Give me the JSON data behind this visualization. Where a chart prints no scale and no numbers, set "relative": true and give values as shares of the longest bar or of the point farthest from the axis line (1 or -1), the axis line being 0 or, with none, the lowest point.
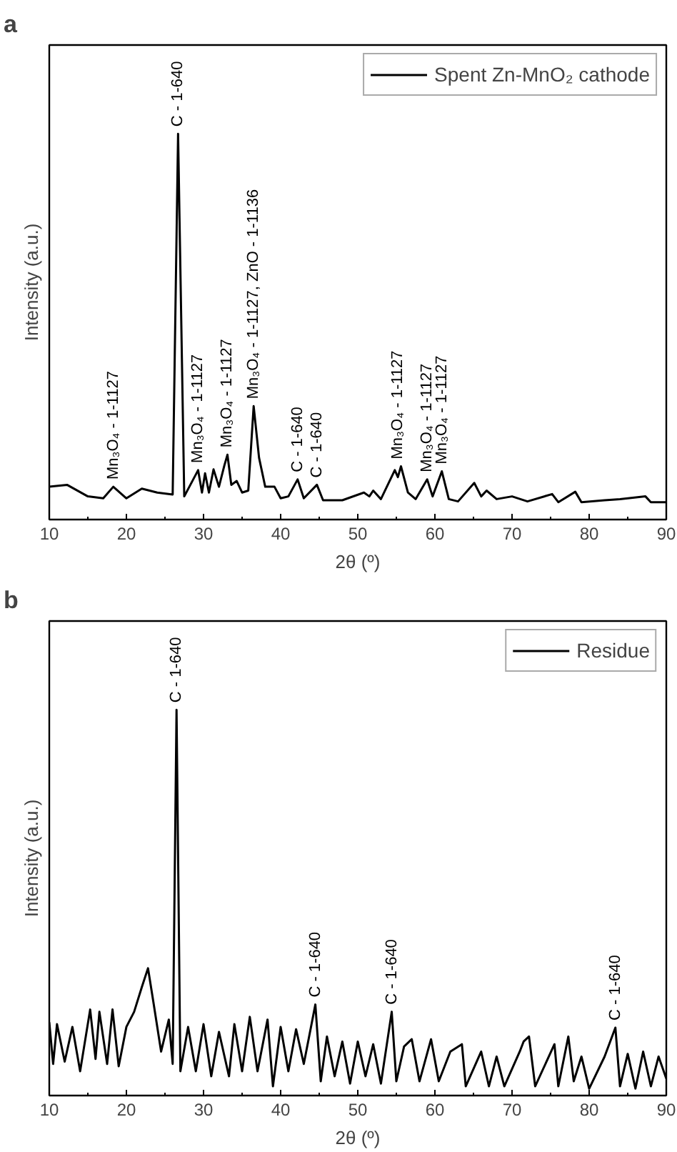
{
  "chart_data": [
    {
      "type": "line",
      "title": "a",
      "xlabel": "2θ (º)",
      "ylabel": "Intensity (a.u.)",
      "relative": true,
      "xlim": [
        10,
        90
      ],
      "xticks": [
        10,
        20,
        30,
        40,
        50,
        60,
        70,
        80,
        90
      ],
      "grid": false,
      "legend": "top right",
      "marker": "none",
      "line_style": "solid",
      "series": [
        {
          "name": "Spent Zn-MnO₂ cathode",
          "color": "#000000",
          "x": [
            10,
            12.3,
            15,
            17,
            18.3,
            20,
            22,
            24,
            26,
            26.7,
            27.5,
            29.3,
            29.8,
            30.2,
            30.7,
            31.3,
            32,
            32.7,
            33.1,
            33.6,
            34.3,
            35,
            35.8,
            36.5,
            37.2,
            38,
            39.2,
            40,
            41,
            42.2,
            43,
            44.7,
            45.5,
            48,
            50.8,
            51.5,
            52,
            53,
            54.8,
            55.2,
            55.6,
            56.5,
            57.5,
            59,
            59.7,
            60.9,
            61.8,
            63,
            65.1,
            66,
            66.7,
            68,
            70,
            72,
            75.2,
            76,
            78.2,
            79,
            82,
            84,
            87.3,
            88,
            90
          ],
          "values": [
            0.085,
            0.09,
            0.06,
            0.055,
            0.085,
            0.055,
            0.08,
            0.07,
            0.065,
            1.0,
            0.06,
            0.128,
            0.07,
            0.12,
            0.07,
            0.13,
            0.085,
            0.14,
            0.168,
            0.09,
            0.1,
            0.07,
            0.075,
            0.294,
            0.16,
            0.085,
            0.085,
            0.055,
            0.06,
            0.104,
            0.055,
            0.09,
            0.05,
            0.05,
            0.07,
            0.06,
            0.075,
            0.053,
            0.128,
            0.11,
            0.138,
            0.07,
            0.053,
            0.104,
            0.06,
            0.125,
            0.053,
            0.047,
            0.095,
            0.06,
            0.075,
            0.053,
            0.06,
            0.047,
            0.066,
            0.045,
            0.072,
            0.045,
            0.05,
            0.053,
            0.06,
            0.045,
            0.045
          ]
        }
      ],
      "annotations": [
        {
          "text": "Mn₃O₄ - 1-1127",
          "x": 18.3,
          "y": 0.085
        },
        {
          "text": "C - 1-640",
          "x": 26.7,
          "y": 1.0
        },
        {
          "text": "Mn₃O₄ - 1-1127",
          "x": 29.3,
          "y": 0.128
        },
        {
          "text": "Mn₃O₄ - 1-1127",
          "x": 33.1,
          "y": 0.168
        },
        {
          "text": "Mn₃O₄ - 1-1127, ZnO - 1-1136",
          "x": 36.5,
          "y": 0.294
        },
        {
          "text": "C - 1-640",
          "x": 42.2,
          "y": 0.104
        },
        {
          "text": "C - 1-640",
          "x": 44.7,
          "y": 0.09
        },
        {
          "text": "Mn₃O₄ - 1-1127",
          "x": 55.2,
          "y": 0.138
        },
        {
          "text": "Mn₃O₄ - 1-1127",
          "x": 59,
          "y": 0.104
        },
        {
          "text": "Mn₃O₄ - 1-1127",
          "x": 60.9,
          "y": 0.125
        }
      ]
    },
    {
      "type": "line",
      "title": "b",
      "xlabel": "2θ (º)",
      "ylabel": "Intensity (a.u.)",
      "relative": true,
      "xlim": [
        10,
        90
      ],
      "xticks": [
        10,
        20,
        30,
        40,
        50,
        60,
        70,
        80,
        90
      ],
      "grid": false,
      "legend": "top right",
      "marker": "none",
      "line_style": "solid",
      "series": [
        {
          "name": "Residue",
          "color": "#000000",
          "x": [
            10,
            10.5,
            11,
            12,
            13,
            14,
            15.3,
            16,
            16.5,
            17.5,
            18.2,
            19,
            20,
            21,
            22,
            22.8,
            23.5,
            24.5,
            25.5,
            26,
            26.5,
            27,
            28,
            29,
            30,
            31,
            32,
            33.3,
            34,
            35,
            36,
            37,
            38.3,
            39,
            40,
            41,
            42,
            43,
            44.5,
            45.2,
            46,
            47,
            48,
            49,
            50,
            51,
            52,
            53,
            54.4,
            55,
            56,
            57,
            58,
            59.5,
            60.5,
            62,
            63.5,
            64,
            66,
            67,
            68,
            69,
            71,
            71.5,
            72.2,
            73,
            75.5,
            76,
            77.3,
            78,
            79,
            80,
            82,
            83.4,
            84,
            85,
            86,
            87,
            88,
            89,
            90
          ],
          "values": [
            0.19,
            0.082,
            0.185,
            0.088,
            0.178,
            0.063,
            0.223,
            0.095,
            0.217,
            0.082,
            0.223,
            0.076,
            0.178,
            0.217,
            0.281,
            0.33,
            0.242,
            0.114,
            0.197,
            0.082,
            1.0,
            0.063,
            0.178,
            0.063,
            0.185,
            0.05,
            0.165,
            0.05,
            0.185,
            0.063,
            0.204,
            0.063,
            0.197,
            0.024,
            0.178,
            0.063,
            0.172,
            0.082,
            0.236,
            0.037,
            0.153,
            0.05,
            0.14,
            0.031,
            0.14,
            0.05,
            0.133,
            0.031,
            0.217,
            0.037,
            0.127,
            0.146,
            0.037,
            0.146,
            0.037,
            0.114,
            0.133,
            0.024,
            0.114,
            0.024,
            0.101,
            0.024,
            0.114,
            0.14,
            0.153,
            0.024,
            0.133,
            0.024,
            0.153,
            0.037,
            0.101,
            0.018,
            0.101,
            0.176,
            0.024,
            0.108,
            0.018,
            0.114,
            0.024,
            0.101,
            0.044
          ]
        }
      ],
      "annotations": [
        {
          "text": "C - 1-640",
          "x": 26.5,
          "y": 1.0
        },
        {
          "text": "C - 1-640",
          "x": 44.5,
          "y": 0.236
        },
        {
          "text": "C - 1-640",
          "x": 54.4,
          "y": 0.217
        },
        {
          "text": "C - 1-640",
          "x": 83.4,
          "y": 0.176
        }
      ]
    }
  ]
}
